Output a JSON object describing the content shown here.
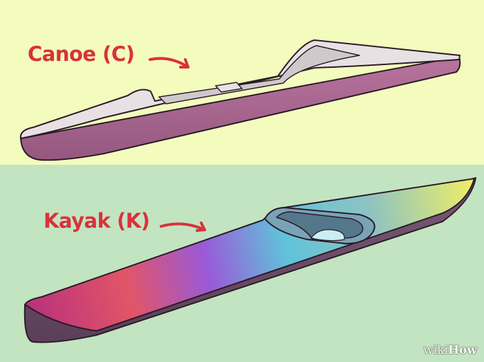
{
  "labels": {
    "canoe": "Canoe (C)",
    "kayak": "Kayak (K)"
  },
  "brand": {
    "part1": "wiki",
    "part2": "How"
  },
  "colors": {
    "top_background": "#f3fbbd",
    "bottom_background": "#c3e4c0",
    "label": "#d8323b",
    "canoe_hull": "#a86590",
    "canoe_deck": "#e7e0e3",
    "outline": "#2a1c26",
    "kayak_hull": "#6a4d68"
  },
  "icons": {
    "canoe_arrow": "curved-arrow-right",
    "kayak_arrow": "curved-arrow-right"
  }
}
